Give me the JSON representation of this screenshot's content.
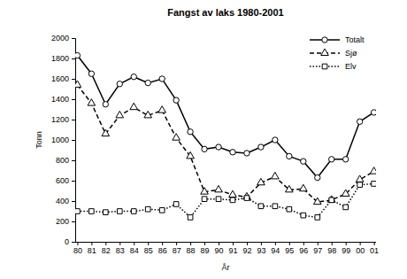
{
  "chart_data": {
    "type": "line",
    "title": "Fangst av laks 1980-2001",
    "x_label": "År",
    "y_label": "Tonn",
    "categories": [
      "80",
      "81",
      "82",
      "83",
      "84",
      "85",
      "86",
      "87",
      "88",
      "89",
      "90",
      "91",
      "92",
      "93",
      "94",
      "95",
      "96",
      "97",
      "98",
      "99",
      "00",
      "01"
    ],
    "series": [
      {
        "name": "Totalt",
        "color": "#000000",
        "marker": "circle",
        "line_style": "solid",
        "values": [
          1830,
          1650,
          1350,
          1550,
          1620,
          1560,
          1600,
          1390,
          1080,
          910,
          930,
          880,
          870,
          930,
          1000,
          840,
          790,
          630,
          810,
          810,
          1180,
          1270
        ]
      },
      {
        "name": "Sjø",
        "color": "#000000",
        "marker": "triangle",
        "line_style": "dashed",
        "values": [
          1540,
          1360,
          1060,
          1240,
          1320,
          1240,
          1290,
          1020,
          840,
          490,
          510,
          460,
          440,
          580,
          640,
          510,
          520,
          390,
          410,
          470,
          610,
          690
        ]
      },
      {
        "name": "Elv",
        "color": "#000000",
        "marker": "square",
        "line_style": "dotted",
        "values": [
          300,
          300,
          290,
          300,
          300,
          320,
          310,
          370,
          240,
          420,
          420,
          410,
          430,
          350,
          350,
          320,
          260,
          240,
          410,
          340,
          560,
          570
        ]
      }
    ],
    "ylim": [
      0,
      2000
    ],
    "yticks": [
      0,
      200,
      400,
      600,
      800,
      1000,
      1200,
      1400,
      1600,
      1800,
      2000
    ],
    "grid": false,
    "legend": "top-right"
  }
}
